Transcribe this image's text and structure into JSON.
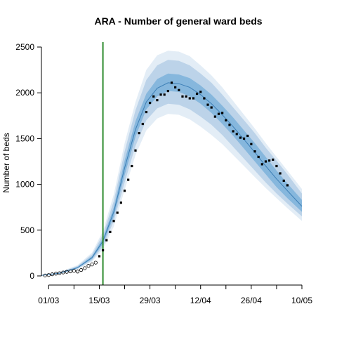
{
  "chart_data": {
    "type": "line",
    "title": "ARA - Number of general ward beds",
    "xlabel": "",
    "ylabel": "Number of beds",
    "x_start_date": "2020-02-28",
    "xlim_days": [
      0,
      72
    ],
    "ylim": [
      0,
      2500
    ],
    "y_ticks": [
      0,
      500,
      1000,
      1500,
      2000,
      2500
    ],
    "x_ticks": [
      {
        "day": 2,
        "label": "01/03"
      },
      {
        "day": 16,
        "label": "15/03"
      },
      {
        "day": 30,
        "label": "29/03"
      },
      {
        "day": 44,
        "label": "12/04"
      },
      {
        "day": 58,
        "label": "26/04"
      },
      {
        "day": 72,
        "label": "10/05"
      }
    ],
    "x_minor_ticks": [
      9,
      23,
      37,
      51,
      65
    ],
    "vertical_line": {
      "day": 17,
      "color": "#2e8b2e"
    },
    "colors": {
      "band_outer": "#e3edf6",
      "band_mid": "#bcd3e9",
      "band_inner": "#86b7dd",
      "median_line": "#3d7fb6",
      "observed_used": "#000000",
      "observed_unused": "#000000"
    },
    "bands": {
      "x": [
        0,
        5,
        10,
        14,
        17,
        20,
        23,
        26,
        29,
        32,
        35,
        38,
        41,
        44,
        47,
        50,
        53,
        56,
        59,
        62,
        65,
        68,
        72
      ],
      "median": [
        5,
        30,
        90,
        200,
        380,
        700,
        1180,
        1600,
        1900,
        2050,
        2110,
        2100,
        2060,
        1980,
        1880,
        1760,
        1630,
        1490,
        1350,
        1200,
        1060,
        930,
        760
      ],
      "inner_lower": [
        5,
        28,
        85,
        185,
        350,
        650,
        1100,
        1520,
        1820,
        1960,
        2020,
        2010,
        1960,
        1880,
        1780,
        1660,
        1530,
        1390,
        1250,
        1110,
        970,
        850,
        700
      ],
      "inner_upper": [
        6,
        33,
        98,
        215,
        410,
        750,
        1260,
        1690,
        1990,
        2150,
        2210,
        2200,
        2160,
        2080,
        1980,
        1860,
        1730,
        1590,
        1450,
        1300,
        1150,
        1010,
        830
      ],
      "mid_lower": [
        4,
        25,
        78,
        170,
        320,
        600,
        1020,
        1420,
        1700,
        1830,
        1880,
        1870,
        1820,
        1740,
        1650,
        1540,
        1410,
        1280,
        1150,
        1020,
        900,
        790,
        650
      ],
      "mid_upper": [
        7,
        37,
        108,
        235,
        450,
        820,
        1360,
        1810,
        2140,
        2300,
        2360,
        2350,
        2300,
        2210,
        2110,
        1980,
        1840,
        1700,
        1560,
        1400,
        1260,
        1110,
        900
      ],
      "outer_lower": [
        3,
        22,
        70,
        155,
        290,
        540,
        940,
        1320,
        1590,
        1720,
        1770,
        1760,
        1710,
        1630,
        1540,
        1440,
        1320,
        1200,
        1080,
        960,
        850,
        740,
        600
      ],
      "outer_upper": [
        8,
        42,
        118,
        255,
        490,
        890,
        1450,
        1900,
        2250,
        2410,
        2460,
        2450,
        2400,
        2300,
        2190,
        2060,
        1910,
        1760,
        1610,
        1450,
        1300,
        1150,
        950
      ]
    },
    "observed_open": [
      [
        1,
        5
      ],
      [
        2,
        10
      ],
      [
        3,
        18
      ],
      [
        4,
        25
      ],
      [
        5,
        30
      ],
      [
        6,
        38
      ],
      [
        7,
        45
      ],
      [
        8,
        50
      ],
      [
        9,
        55
      ],
      [
        10,
        48
      ],
      [
        11,
        65
      ],
      [
        12,
        85
      ],
      [
        13,
        110
      ],
      [
        14,
        125
      ],
      [
        15,
        145
      ]
    ],
    "observed_filled": [
      [
        16,
        215
      ],
      [
        17,
        280
      ],
      [
        18,
        390
      ],
      [
        19,
        480
      ],
      [
        20,
        600
      ],
      [
        21,
        690
      ],
      [
        22,
        800
      ],
      [
        23,
        930
      ],
      [
        24,
        1050
      ],
      [
        25,
        1200
      ],
      [
        26,
        1370
      ],
      [
        27,
        1560
      ],
      [
        28,
        1660
      ],
      [
        29,
        1790
      ],
      [
        30,
        1890
      ],
      [
        31,
        1960
      ],
      [
        32,
        1920
      ],
      [
        33,
        1980
      ],
      [
        34,
        1980
      ],
      [
        35,
        2020
      ],
      [
        36,
        2110
      ],
      [
        37,
        2060
      ],
      [
        38,
        2030
      ],
      [
        39,
        1960
      ],
      [
        40,
        1960
      ],
      [
        41,
        1940
      ],
      [
        42,
        1940
      ],
      [
        43,
        1990
      ],
      [
        44,
        2010
      ],
      [
        45,
        1940
      ],
      [
        46,
        1870
      ],
      [
        47,
        1840
      ],
      [
        48,
        1740
      ],
      [
        49,
        1770
      ],
      [
        50,
        1780
      ],
      [
        51,
        1700
      ],
      [
        52,
        1650
      ],
      [
        53,
        1580
      ],
      [
        54,
        1550
      ],
      [
        55,
        1510
      ],
      [
        56,
        1500
      ],
      [
        57,
        1530
      ],
      [
        58,
        1440
      ],
      [
        59,
        1360
      ],
      [
        60,
        1300
      ],
      [
        61,
        1220
      ],
      [
        62,
        1250
      ],
      [
        63,
        1260
      ],
      [
        64,
        1270
      ],
      [
        65,
        1200
      ],
      [
        66,
        1120
      ],
      [
        67,
        1040
      ],
      [
        68,
        990
      ]
    ]
  }
}
